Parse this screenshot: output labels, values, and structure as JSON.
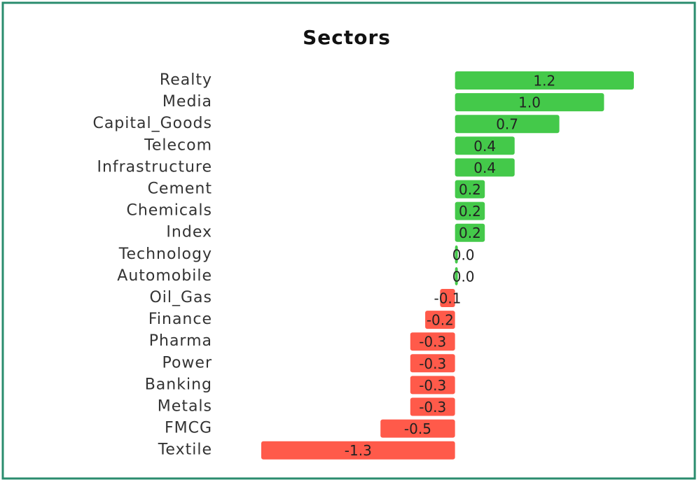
{
  "chart_data": {
    "type": "bar",
    "orientation": "horizontal",
    "title": "Sectors",
    "categories": [
      "Realty",
      "Media",
      "Capital_Goods",
      "Telecom",
      "Infrastructure",
      "Cement",
      "Chemicals",
      "Index",
      "Technology",
      "Automobile",
      "Oil_Gas",
      "Finance",
      "Pharma",
      "Power",
      "Banking",
      "Metals",
      "FMCG",
      "Textile"
    ],
    "values": [
      1.2,
      1.0,
      0.7,
      0.4,
      0.4,
      0.2,
      0.2,
      0.2,
      0.0,
      0.0,
      -0.1,
      -0.2,
      -0.3,
      -0.3,
      -0.3,
      -0.3,
      -0.5,
      -1.3
    ],
    "value_labels": [
      "1.2",
      "1.0",
      "0.7",
      "0.4",
      "0.4",
      "0.2",
      "0.2",
      "0.2",
      "0.0",
      "0.0",
      "-0.1",
      "-0.2",
      "-0.3",
      "-0.3",
      "-0.3",
      "-0.3",
      "-0.5",
      "-1.3"
    ],
    "positive_color": "#44c94a",
    "negative_color": "#ff5a4a"
  }
}
